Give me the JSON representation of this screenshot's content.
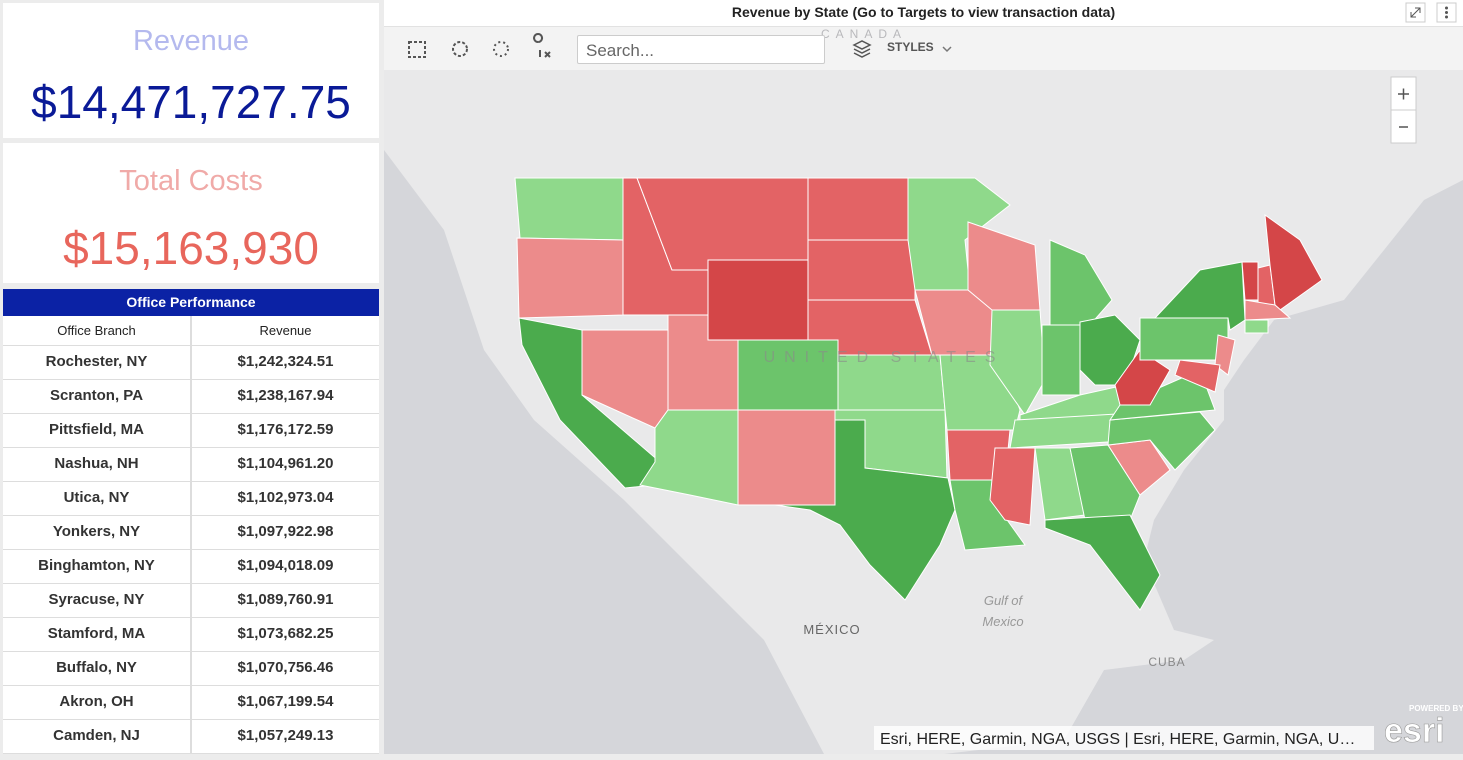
{
  "kpis": [
    {
      "label": "Revenue",
      "value": "$14,471,727.75"
    },
    {
      "label": "Total Costs",
      "value": "$15,163,930"
    }
  ],
  "table": {
    "title": "Office Performance",
    "columns": [
      "Office Branch",
      "Revenue"
    ],
    "rows": [
      [
        "Rochester, NY",
        "$1,242,324.51"
      ],
      [
        "Scranton, PA",
        "$1,238,167.94"
      ],
      [
        "Pittsfield, MA",
        "$1,176,172.59"
      ],
      [
        "Nashua, NH",
        "$1,104,961.20"
      ],
      [
        "Utica, NY",
        "$1,102,973.04"
      ],
      [
        "Yonkers, NY",
        "$1,097,922.98"
      ],
      [
        "Binghamton, NY",
        "$1,094,018.09"
      ],
      [
        "Syracuse, NY",
        "$1,089,760.91"
      ],
      [
        "Stamford, MA",
        "$1,073,682.25"
      ],
      [
        "Buffalo, NY",
        "$1,070,756.46"
      ],
      [
        "Akron, OH",
        "$1,067,199.54"
      ],
      [
        "Camden, NJ",
        "$1,057,249.13"
      ]
    ]
  },
  "map": {
    "title": "Revenue by State (Go to Targets to view transaction data)",
    "search_placeholder": "Search...",
    "styles_button": "STYLES",
    "labels": [
      "CANADA",
      "UNITED STATES",
      "MÉXICO",
      "Gulf of",
      "Mexico",
      "CUBA"
    ],
    "attribution": "Esri, HERE, Garmin, NGA, USGS | Esri, HERE, Garmin, NGA, U…",
    "logo_caption": "POWERED BY",
    "logo": "esri"
  }
}
